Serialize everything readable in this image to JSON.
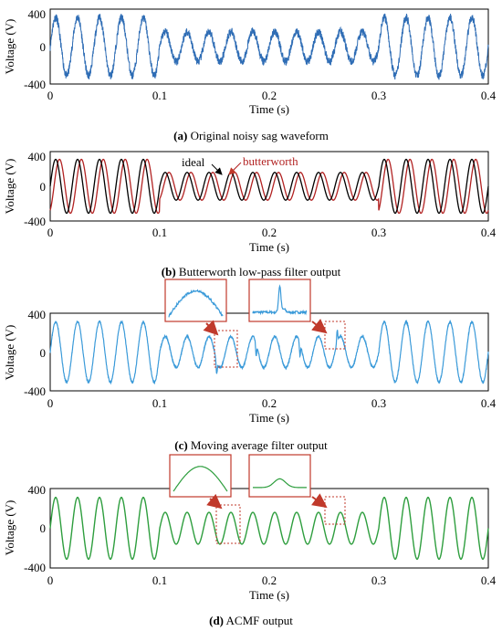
{
  "chart_data": [
    {
      "type": "line",
      "panel": "a",
      "caption_letter": "(a)",
      "caption_text": "Original noisy sag waveform",
      "xlabel": "Time (s)",
      "ylabel": "Voltage (V)",
      "xlim": [
        0,
        0.4
      ],
      "ylim": [
        -400,
        400
      ],
      "xticks": [
        "0",
        "0.1",
        "0.2",
        "0.3",
        "0.4"
      ],
      "yticks": [
        "-400",
        "0",
        "400"
      ],
      "frequency_hz": 50,
      "sag_interval_s": [
        0.1,
        0.3
      ],
      "amplitude_normal_v": 311,
      "amplitude_sag_v": 160,
      "noise": "high",
      "series": [
        {
          "values_desc": "noisy sag",
          "color": "#2f6db5"
        }
      ]
    },
    {
      "type": "line",
      "panel": "b",
      "caption_letter": "(b)",
      "caption_text": "Butterworth low-pass filter output",
      "xlabel": "Time (s)",
      "ylabel": "Voltage (V)",
      "xlim": [
        0,
        0.4
      ],
      "ylim": [
        -400,
        400
      ],
      "xticks": [
        "0",
        "0.1",
        "0.2",
        "0.3",
        "0.4"
      ],
      "yticks": [
        "-400",
        "0",
        "400"
      ],
      "frequency_hz": 50,
      "sag_interval_s": [
        0.1,
        0.3
      ],
      "amplitude_normal_v": 311,
      "amplitude_sag_v": 160,
      "series": [
        {
          "name": "ideal",
          "color": "#000000",
          "phase_lag_s": 0
        },
        {
          "name": "butterworth",
          "color": "#b22222",
          "phase_lag_s": 0.0035
        }
      ]
    },
    {
      "type": "line",
      "panel": "c",
      "caption_letter": "(c)",
      "caption_text": "Moving average filter output",
      "xlabel": "Time (s)",
      "ylabel": "Voltage (V)",
      "xlim": [
        0,
        0.4
      ],
      "ylim": [
        -400,
        400
      ],
      "xticks": [
        "0",
        "0.1",
        "0.2",
        "0.3",
        "0.4"
      ],
      "yticks": [
        "-400",
        "0",
        "400"
      ],
      "frequency_hz": 50,
      "sag_interval_s": [
        0.1,
        0.3
      ],
      "amplitude_normal_v": 311,
      "amplitude_sag_v": 160,
      "noise": "low",
      "spikes_s": [
        0.152,
        0.188,
        0.228,
        0.262
      ],
      "zoom_windows_s": [
        [
          0.15,
          0.165
        ],
        [
          0.255,
          0.27
        ]
      ],
      "series": [
        {
          "values_desc": "moving average",
          "color": "#3a9ad9"
        }
      ]
    },
    {
      "type": "line",
      "panel": "d",
      "caption_letter": "(d)",
      "caption_text": "ACMF output",
      "xlabel": "Time (s)",
      "ylabel": "Voltage (V)",
      "xlim": [
        0,
        0.4
      ],
      "ylim": [
        -400,
        400
      ],
      "xticks": [
        "0",
        "0.1",
        "0.2",
        "0.3",
        "0.4"
      ],
      "yticks": [
        "-400",
        "0",
        "400"
      ],
      "frequency_hz": 50,
      "sag_interval_s": [
        0.1,
        0.3
      ],
      "amplitude_normal_v": 311,
      "amplitude_sag_v": 160,
      "noise": "none",
      "zoom_windows_s": [
        [
          0.15,
          0.17
        ],
        [
          0.255,
          0.27
        ]
      ],
      "series": [
        {
          "values_desc": "ACMF",
          "color": "#2e9e3e"
        }
      ]
    }
  ],
  "colors": {
    "axis": "#000000",
    "zoom_box": "#c0392b",
    "annotation_arrow": "#c0392b"
  }
}
